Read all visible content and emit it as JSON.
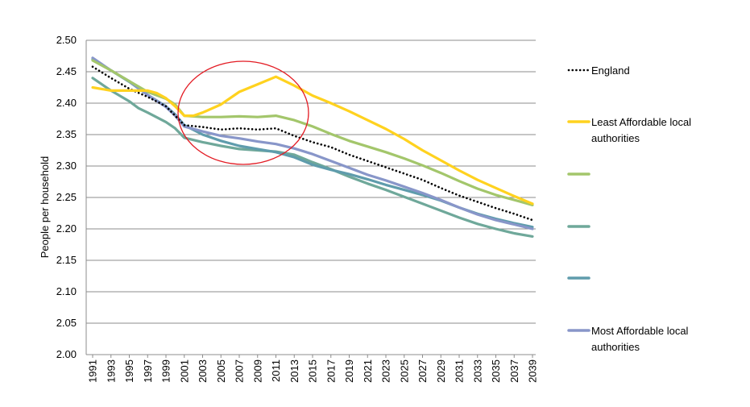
{
  "chart_data": {
    "type": "line",
    "title": "",
    "xlabel": "",
    "ylabel": "People per household",
    "ylim": [
      2.0,
      2.5
    ],
    "yticks": [
      "2.00",
      "2.05",
      "2.10",
      "2.15",
      "2.20",
      "2.25",
      "2.30",
      "2.35",
      "2.40",
      "2.45",
      "2.50"
    ],
    "xlim": [
      1991,
      2039
    ],
    "xticks": [
      "1991",
      "1993",
      "1995",
      "1997",
      "1999",
      "2001",
      "2003",
      "2005",
      "2007",
      "2009",
      "2011",
      "2013",
      "2015",
      "2017",
      "2019",
      "2021",
      "2023",
      "2025",
      "2027",
      "2029",
      "2031",
      "2033",
      "2035",
      "2037",
      "2039"
    ],
    "grid": "horizontal",
    "legend_position": "right",
    "annotation": "red ellipse highlighting 2001-2013",
    "series": [
      {
        "name": "England",
        "color": "#000000",
        "style": "dotted",
        "points": [
          [
            1991,
            2.458
          ],
          [
            1993,
            2.44
          ],
          [
            1995,
            2.423
          ],
          [
            1997,
            2.41
          ],
          [
            1999,
            2.395
          ],
          [
            2001,
            2.365
          ],
          [
            2003,
            2.362
          ],
          [
            2005,
            2.358
          ],
          [
            2007,
            2.36
          ],
          [
            2009,
            2.358
          ],
          [
            2011,
            2.36
          ],
          [
            2013,
            2.348
          ],
          [
            2015,
            2.338
          ],
          [
            2017,
            2.33
          ],
          [
            2019,
            2.318
          ],
          [
            2021,
            2.308
          ],
          [
            2023,
            2.298
          ],
          [
            2025,
            2.288
          ],
          [
            2027,
            2.278
          ],
          [
            2029,
            2.265
          ],
          [
            2031,
            2.253
          ],
          [
            2033,
            2.243
          ],
          [
            2035,
            2.233
          ],
          [
            2037,
            2.224
          ],
          [
            2039,
            2.214
          ]
        ]
      },
      {
        "name": "Least Affordable local authorities",
        "color": "#ffd21f",
        "style": "solid",
        "points": [
          [
            1991,
            2.425
          ],
          [
            1993,
            2.42
          ],
          [
            1995,
            2.42
          ],
          [
            1997,
            2.42
          ],
          [
            1998,
            2.416
          ],
          [
            1999,
            2.408
          ],
          [
            2000,
            2.395
          ],
          [
            2001,
            2.38
          ],
          [
            2002,
            2.38
          ],
          [
            2003,
            2.385
          ],
          [
            2005,
            2.398
          ],
          [
            2007,
            2.418
          ],
          [
            2009,
            2.43
          ],
          [
            2011,
            2.442
          ],
          [
            2013,
            2.428
          ],
          [
            2015,
            2.412
          ],
          [
            2017,
            2.4
          ],
          [
            2019,
            2.387
          ],
          [
            2021,
            2.373
          ],
          [
            2023,
            2.359
          ],
          [
            2025,
            2.343
          ],
          [
            2027,
            2.325
          ],
          [
            2029,
            2.309
          ],
          [
            2031,
            2.293
          ],
          [
            2033,
            2.278
          ],
          [
            2035,
            2.265
          ],
          [
            2037,
            2.252
          ],
          [
            2039,
            2.24
          ]
        ]
      },
      {
        "name": "",
        "color": "#a3c66b",
        "style": "solid",
        "points": [
          [
            1991,
            2.468
          ],
          [
            1993,
            2.452
          ],
          [
            1995,
            2.435
          ],
          [
            1997,
            2.418
          ],
          [
            1999,
            2.407
          ],
          [
            2000,
            2.398
          ],
          [
            2001,
            2.38
          ],
          [
            2003,
            2.378
          ],
          [
            2005,
            2.378
          ],
          [
            2007,
            2.379
          ],
          [
            2009,
            2.378
          ],
          [
            2011,
            2.38
          ],
          [
            2013,
            2.373
          ],
          [
            2015,
            2.363
          ],
          [
            2017,
            2.351
          ],
          [
            2019,
            2.34
          ],
          [
            2021,
            2.331
          ],
          [
            2023,
            2.322
          ],
          [
            2025,
            2.312
          ],
          [
            2027,
            2.301
          ],
          [
            2029,
            2.289
          ],
          [
            2031,
            2.276
          ],
          [
            2033,
            2.264
          ],
          [
            2035,
            2.254
          ],
          [
            2037,
            2.246
          ],
          [
            2039,
            2.238
          ]
        ]
      },
      {
        "name": "",
        "color": "#6fa89a",
        "style": "solid",
        "points": [
          [
            1991,
            2.44
          ],
          [
            1993,
            2.42
          ],
          [
            1995,
            2.403
          ],
          [
            1996,
            2.392
          ],
          [
            1997,
            2.385
          ],
          [
            1999,
            2.37
          ],
          [
            2000,
            2.36
          ],
          [
            2001,
            2.345
          ],
          [
            2003,
            2.338
          ],
          [
            2005,
            2.332
          ],
          [
            2007,
            2.327
          ],
          [
            2009,
            2.325
          ],
          [
            2011,
            2.323
          ],
          [
            2013,
            2.318
          ],
          [
            2015,
            2.306
          ],
          [
            2017,
            2.295
          ],
          [
            2019,
            2.283
          ],
          [
            2021,
            2.272
          ],
          [
            2023,
            2.262
          ],
          [
            2025,
            2.251
          ],
          [
            2027,
            2.24
          ],
          [
            2029,
            2.229
          ],
          [
            2031,
            2.218
          ],
          [
            2033,
            2.208
          ],
          [
            2035,
            2.2
          ],
          [
            2037,
            2.193
          ],
          [
            2039,
            2.188
          ]
        ]
      },
      {
        "name": "",
        "color": "#5f9cac",
        "style": "solid",
        "points": [
          [
            1991,
            2.47
          ],
          [
            1993,
            2.452
          ],
          [
            1995,
            2.434
          ],
          [
            1997,
            2.413
          ],
          [
            1999,
            2.395
          ],
          [
            2000,
            2.382
          ],
          [
            2001,
            2.365
          ],
          [
            2003,
            2.35
          ],
          [
            2005,
            2.34
          ],
          [
            2007,
            2.332
          ],
          [
            2009,
            2.327
          ],
          [
            2011,
            2.322
          ],
          [
            2013,
            2.314
          ],
          [
            2015,
            2.302
          ],
          [
            2017,
            2.294
          ],
          [
            2019,
            2.287
          ],
          [
            2021,
            2.279
          ],
          [
            2023,
            2.27
          ],
          [
            2025,
            2.262
          ],
          [
            2027,
            2.254
          ],
          [
            2029,
            2.245
          ],
          [
            2031,
            2.234
          ],
          [
            2033,
            2.224
          ],
          [
            2035,
            2.216
          ],
          [
            2037,
            2.209
          ],
          [
            2039,
            2.203
          ]
        ]
      },
      {
        "name": "Most Affordable local authorities",
        "color": "#8896c9",
        "style": "solid",
        "points": [
          [
            1991,
            2.472
          ],
          [
            1993,
            2.452
          ],
          [
            1995,
            2.435
          ],
          [
            1997,
            2.413
          ],
          [
            1999,
            2.394
          ],
          [
            2000,
            2.38
          ],
          [
            2001,
            2.363
          ],
          [
            2003,
            2.355
          ],
          [
            2005,
            2.348
          ],
          [
            2007,
            2.344
          ],
          [
            2009,
            2.339
          ],
          [
            2011,
            2.335
          ],
          [
            2013,
            2.328
          ],
          [
            2015,
            2.319
          ],
          [
            2017,
            2.308
          ],
          [
            2019,
            2.297
          ],
          [
            2021,
            2.286
          ],
          [
            2023,
            2.277
          ],
          [
            2025,
            2.267
          ],
          [
            2027,
            2.257
          ],
          [
            2029,
            2.246
          ],
          [
            2031,
            2.234
          ],
          [
            2033,
            2.223
          ],
          [
            2035,
            2.214
          ],
          [
            2037,
            2.207
          ],
          [
            2039,
            2.2
          ]
        ]
      }
    ]
  },
  "legend": {
    "entries": [
      {
        "series_index": 0,
        "lines": [
          "England"
        ]
      },
      {
        "series_index": 1,
        "lines": [
          "Least Affordable local",
          "authorities"
        ]
      },
      {
        "series_index": 2,
        "lines": []
      },
      {
        "series_index": 3,
        "lines": []
      },
      {
        "series_index": 4,
        "lines": []
      },
      {
        "series_index": 5,
        "lines": [
          "Most Affordable local",
          "authorities"
        ]
      }
    ]
  },
  "annotation_color": "#e31b23"
}
